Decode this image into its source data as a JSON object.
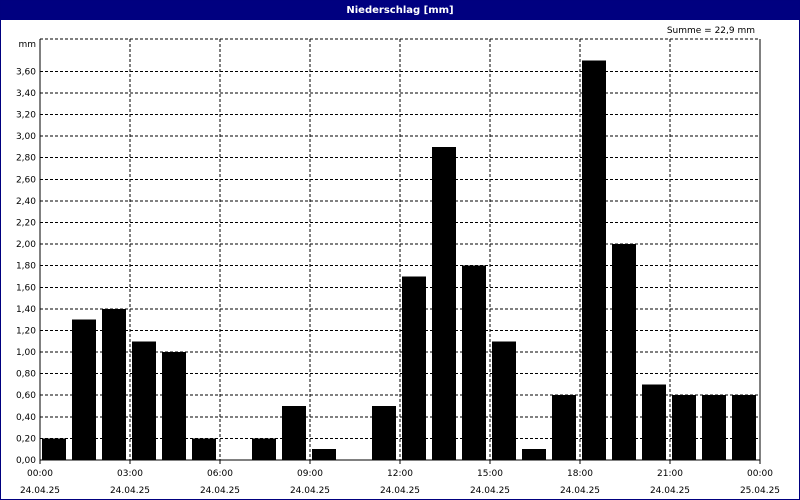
{
  "window": {
    "title": "Niederschlag [mm]",
    "sum_label": "Summe = 22,9 mm"
  },
  "colors": {
    "title_bar": "#000080",
    "bar": "#000000",
    "grid": "#000000"
  },
  "chart_data": {
    "type": "bar",
    "title": "Niederschlag [mm]",
    "ylabel": "mm",
    "ylim": [
      0,
      3.9
    ],
    "grid": true,
    "y_ticks": [
      "0,00",
      "0,20",
      "0,40",
      "0,60",
      "0,80",
      "1,00",
      "1,20",
      "1,40",
      "1,60",
      "1,80",
      "2,00",
      "2,20",
      "2,40",
      "2,60",
      "2,80",
      "3,00",
      "3,20",
      "3,40",
      "3,60"
    ],
    "x_ticks": [
      {
        "time": "00:00",
        "date": "24.04.25"
      },
      {
        "time": "03:00",
        "date": "24.04.25"
      },
      {
        "time": "06:00",
        "date": "24.04.25"
      },
      {
        "time": "09:00",
        "date": "24.04.25"
      },
      {
        "time": "12:00",
        "date": "24.04.25"
      },
      {
        "time": "15:00",
        "date": "24.04.25"
      },
      {
        "time": "18:00",
        "date": "24.04.25"
      },
      {
        "time": "21:00",
        "date": "24.04.25"
      },
      {
        "time": "00:00",
        "date": "25.04.25"
      }
    ],
    "x_start": "24.04.25 00:00",
    "x_end": "25.04.25 00:00",
    "bins_per_tick": 3,
    "values": [
      0.2,
      1.3,
      1.4,
      1.1,
      1.0,
      0.2,
      0.0,
      0.2,
      0.5,
      0.1,
      0.0,
      0.5,
      1.7,
      2.9,
      1.8,
      1.1,
      0.1,
      0.6,
      3.7,
      2.0,
      0.7,
      0.6,
      0.6,
      0.6
    ]
  }
}
